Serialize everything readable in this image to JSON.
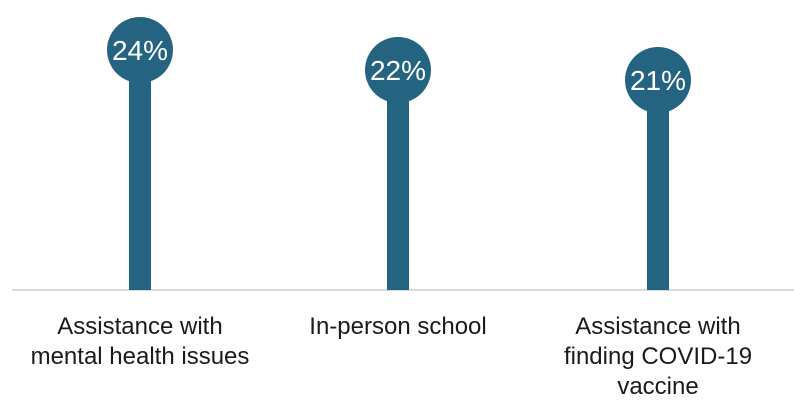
{
  "chart_data": {
    "type": "lollipop",
    "categories": [
      "Assistance with mental health issues",
      "In-person school",
      "Assistance with finding COVID-19 vaccine"
    ],
    "category_lines": [
      [
        "Assistance with",
        "mental health issues"
      ],
      [
        "In-person school"
      ],
      [
        "Assistance with",
        "finding COVID-19",
        "vaccine"
      ]
    ],
    "values": [
      24,
      22,
      21
    ],
    "value_labels": [
      "24%",
      "22%",
      "21%"
    ],
    "unit": "%",
    "title": "",
    "xlabel": "",
    "ylabel": "",
    "ylim": [
      0,
      25
    ],
    "grid": false,
    "legend": "none",
    "colors": {
      "stick": "#256480",
      "baseline": "#d9d9d9",
      "label_text": "#ffffff"
    }
  }
}
